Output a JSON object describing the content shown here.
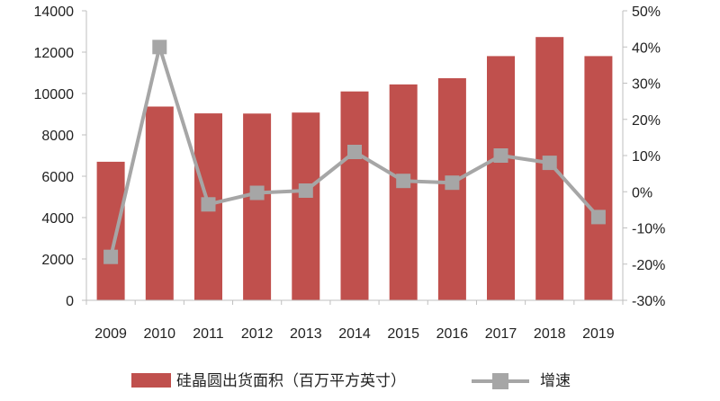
{
  "chart_data": {
    "type": "bar",
    "title": "",
    "xlabel": "",
    "categories": [
      "2009",
      "2010",
      "2011",
      "2012",
      "2013",
      "2014",
      "2015",
      "2016",
      "2017",
      "2018",
      "2019"
    ],
    "series": [
      {
        "name": "硅晶圆出货面积（百万平方英寸）",
        "type": "bar",
        "axis": "left",
        "color": "#c0504d",
        "values": [
          6700,
          9370,
          9040,
          9030,
          9080,
          10100,
          10440,
          10740,
          11810,
          12730,
          11810
        ]
      },
      {
        "name": "增速",
        "type": "line",
        "axis": "right",
        "color": "#a6a6a6",
        "values": [
          -0.18,
          0.4,
          -0.035,
          -0.003,
          0.003,
          0.11,
          0.03,
          0.025,
          0.1,
          0.08,
          -0.07
        ]
      }
    ],
    "y_left": {
      "ylim": [
        0,
        14000
      ],
      "ticks": [
        0,
        2000,
        4000,
        6000,
        8000,
        10000,
        12000,
        14000
      ],
      "tick_labels": [
        "0",
        "2000",
        "4000",
        "6000",
        "8000",
        "10000",
        "12000",
        "14000"
      ]
    },
    "y_right": {
      "ylim": [
        -0.3,
        0.5
      ],
      "ticks": [
        -0.3,
        -0.2,
        -0.1,
        0.0,
        0.1,
        0.2,
        0.3,
        0.4,
        0.5
      ],
      "tick_labels": [
        "-30%",
        "-20%",
        "-10%",
        "0%",
        "10%",
        "20%",
        "30%",
        "40%",
        "50%"
      ]
    },
    "grid": false,
    "legend": {
      "position": "bottom"
    }
  }
}
